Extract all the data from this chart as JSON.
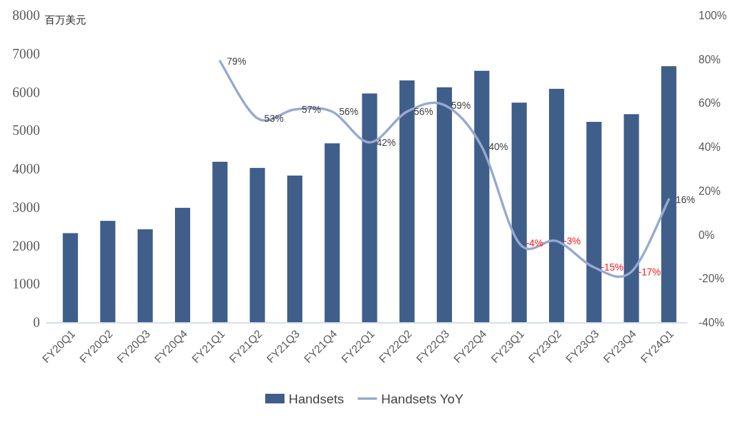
{
  "chart_data": {
    "type": "bar",
    "ylabel": "百万美元",
    "categories": [
      "FY20Q1",
      "FY20Q2",
      "FY20Q3",
      "FY20Q4",
      "FY21Q1",
      "FY21Q2",
      "FY21Q3",
      "FY21Q4",
      "FY22Q1",
      "FY22Q2",
      "FY22Q3",
      "FY22Q4",
      "FY23Q1",
      "FY23Q2",
      "FY23Q3",
      "FY23Q4",
      "FY24Q1"
    ],
    "series": [
      {
        "name": "Handsets",
        "color": "#3f5e8a",
        "values": [
          2320,
          2640,
          2420,
          2980,
          4180,
          4020,
          3820,
          4660,
          5960,
          6300,
          6120,
          6550,
          5720,
          6080,
          5220,
          5420,
          6670
        ]
      },
      {
        "name": "Handsets YoY",
        "type": "line",
        "axis": "y2",
        "color": "#97a9d0",
        "values": [
          null,
          null,
          null,
          null,
          79,
          53,
          57,
          56,
          42,
          56,
          59,
          40,
          -4,
          -3,
          -15,
          -17,
          16
        ],
        "value_labels": [
          null,
          null,
          null,
          null,
          "79%",
          "53%",
          "57%",
          "56%",
          "42%",
          "56%",
          "59%",
          "40%",
          "-4%",
          "-3%",
          "-15%",
          "-17%",
          "16%"
        ]
      }
    ],
    "ylim": [
      0,
      8000
    ],
    "yticks": [
      0,
      1000,
      2000,
      3000,
      4000,
      5000,
      6000,
      7000,
      8000
    ],
    "y2lim": [
      -40,
      100
    ],
    "y2ticks": [
      {
        "value": -40,
        "label": "-40%"
      },
      {
        "value": -20,
        "label": "-20%"
      },
      {
        "value": 0,
        "label": "0%"
      },
      {
        "value": 20,
        "label": "20%"
      },
      {
        "value": 40,
        "label": "40%"
      },
      {
        "value": 60,
        "label": "60%"
      },
      {
        "value": 80,
        "label": "80%"
      },
      {
        "value": 100,
        "label": "100%"
      }
    ],
    "grid": false,
    "legend": "bottom",
    "marker": "none",
    "line_style": "solid"
  }
}
